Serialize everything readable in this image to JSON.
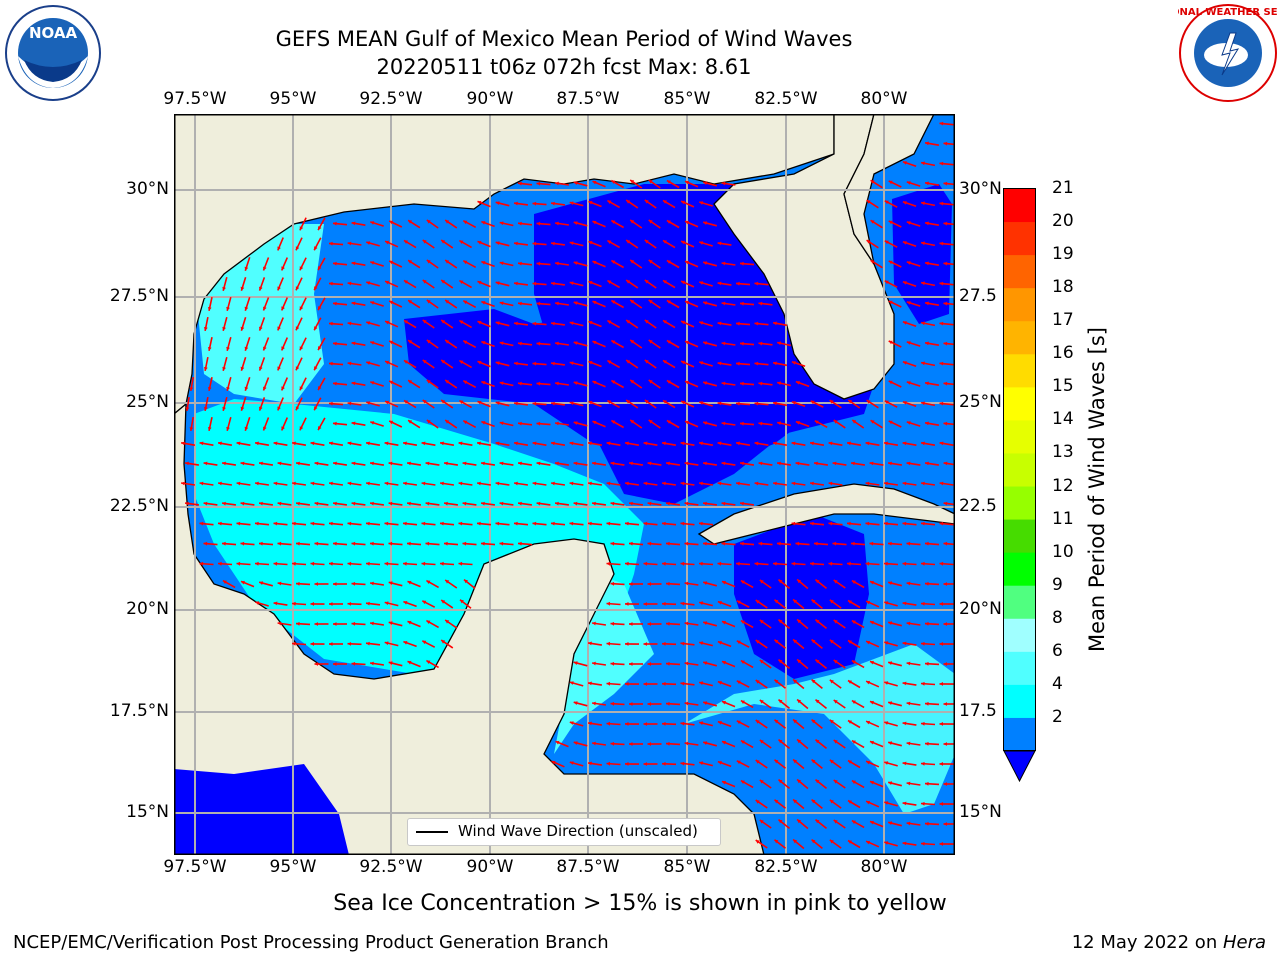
{
  "header": {
    "title_line1": "GEFS MEAN Gulf of Mexico Mean Period of Wind Waves",
    "title_line2": "20220511 t06z 072h fcst   Max: 8.61"
  },
  "logos": {
    "left": "NOAA",
    "right": "NATIONAL WEATHER SERVICE"
  },
  "map": {
    "lon_labels": [
      "97.5°W",
      "95°W",
      "92.5°W",
      "90°W",
      "87.5°W",
      "85°W",
      "82.5°W",
      "80°W"
    ],
    "lat_labels_left": [
      "30°N",
      "27.5°N",
      "25°N",
      "22.5°N",
      "20°N",
      "17.5°N",
      "15°N"
    ],
    "lat_labels_right": [
      "30°N",
      "27.5",
      "25°N",
      "22.5",
      "20°N",
      "17.5",
      "15°N"
    ],
    "legend_label": "Wind Wave Direction (unscaled)",
    "land_color": "#efeedc",
    "arrow_color": "#ff0000"
  },
  "colorbar": {
    "title": "Mean Period of Wind Waves [s]",
    "ticks": [
      "21",
      "20",
      "19",
      "18",
      "17",
      "16",
      "15",
      "14",
      "13",
      "12",
      "11",
      "10",
      "9",
      "8",
      "6",
      "4",
      "2"
    ],
    "colors": [
      "#ff0000",
      "#ff3200",
      "#ff6400",
      "#ff9600",
      "#ffb400",
      "#ffdc00",
      "#ffff00",
      "#e6ff00",
      "#c8ff00",
      "#96ff00",
      "#46dc00",
      "#00ff00",
      "#50ff80",
      "#a0ffff",
      "#50ffff",
      "#00ffff",
      "#0080ff"
    ],
    "under_color": "#0000ff"
  },
  "caption": "Sea Ice Concentration > 15% is shown in pink to yellow",
  "footer": {
    "left": "NCEP/EMC/Verification Post Processing Product Generation Branch",
    "date": "12 May 2022 on ",
    "machine": "Hera"
  }
}
